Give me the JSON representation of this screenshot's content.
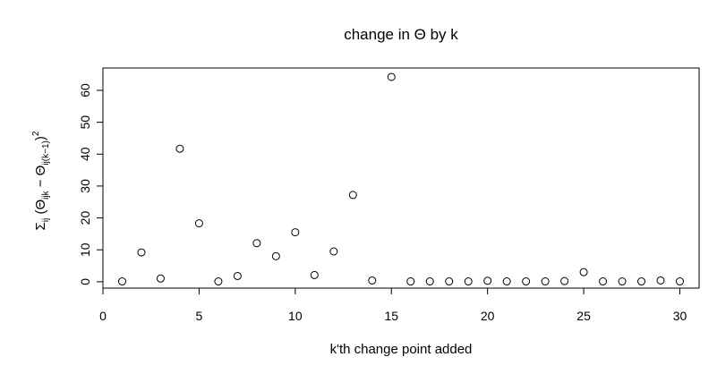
{
  "chart_data": {
    "type": "scatter",
    "title": "change in Θ by k",
    "xlabel": "k'th change point added",
    "ylabel": {
      "sigma": "Σ",
      "sigma_sub": "ij",
      "open": " (",
      "theta1": "Θ",
      "theta1_sub": "ijk",
      "minus": " − ",
      "theta2": "Θ",
      "theta2_sub": "ij(k−1)",
      "close": ")",
      "power": "2"
    },
    "xlim": [
      0,
      31
    ],
    "ylim": [
      -2,
      67
    ],
    "xticks": [
      0,
      5,
      10,
      15,
      20,
      25,
      30
    ],
    "yticks": [
      0,
      10,
      20,
      30,
      40,
      50,
      60
    ],
    "marker": "open-circle",
    "grid": false,
    "x": [
      1,
      2,
      3,
      4,
      5,
      6,
      7,
      8,
      9,
      10,
      11,
      12,
      13,
      14,
      15,
      16,
      17,
      18,
      19,
      20,
      21,
      22,
      23,
      24,
      25,
      26,
      27,
      28,
      29,
      30
    ],
    "y": [
      0.1,
      9.2,
      1.0,
      41.7,
      18.3,
      0.1,
      1.8,
      12.1,
      8.0,
      15.5,
      2.1,
      9.5,
      27.2,
      0.4,
      64.2,
      0.1,
      0.1,
      0.1,
      0.1,
      0.3,
      0.1,
      0.1,
      0.1,
      0.2,
      3.0,
      0.1,
      0.1,
      0.1,
      0.4,
      0.1
    ]
  }
}
